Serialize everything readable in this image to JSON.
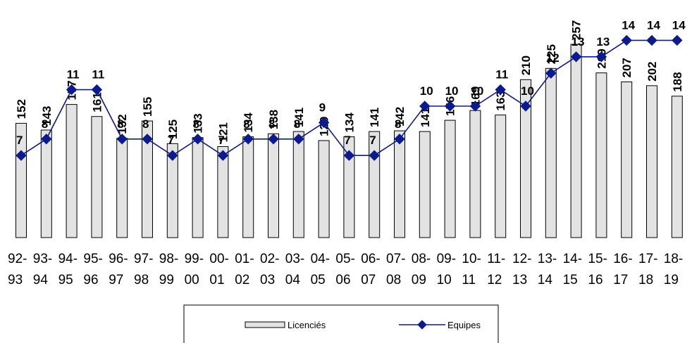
{
  "chart_data": {
    "type": "bar",
    "categories": [
      [
        "92-",
        "93"
      ],
      [
        "93-",
        "94"
      ],
      [
        "94-",
        "95"
      ],
      [
        "95-",
        "96"
      ],
      [
        "96-",
        "97"
      ],
      [
        "97-",
        "98"
      ],
      [
        "98-",
        "99"
      ],
      [
        "99-",
        "00"
      ],
      [
        "00-",
        "01"
      ],
      [
        "01-",
        "02"
      ],
      [
        "02-",
        "03"
      ],
      [
        "03-",
        "04"
      ],
      [
        "04-",
        "05"
      ],
      [
        "05-",
        "06"
      ],
      [
        "06-",
        "07"
      ],
      [
        "07-",
        "08"
      ],
      [
        "08-",
        "09"
      ],
      [
        "09-",
        "10"
      ],
      [
        "10-",
        "11"
      ],
      [
        "11-",
        "12"
      ],
      [
        "12-",
        "13"
      ],
      [
        "13-",
        "14"
      ],
      [
        "14-",
        "15"
      ],
      [
        "15-",
        "16"
      ],
      [
        "16-",
        "17"
      ],
      [
        "17-",
        "18"
      ],
      [
        "18-",
        "19"
      ]
    ],
    "series": [
      {
        "name": "Licenciés",
        "type": "bar",
        "values": [
          152,
          143,
          177,
          161,
          132,
          155,
          125,
          133,
          121,
          134,
          138,
          141,
          129,
          134,
          141,
          142,
          141,
          156,
          169,
          163,
          210,
          225,
          257,
          219,
          207,
          202,
          188
        ],
        "color": "#e3e3e3"
      },
      {
        "name": "Equipes",
        "type": "line",
        "values": [
          7,
          8,
          11,
          11,
          8,
          8,
          7,
          8,
          7,
          8,
          8,
          8,
          9,
          7,
          7,
          8,
          10,
          10,
          10,
          11,
          10,
          12,
          13,
          13,
          14,
          14,
          14
        ],
        "color": "#0b1a8c"
      }
    ],
    "legend_position": "bottom",
    "grid": false
  }
}
